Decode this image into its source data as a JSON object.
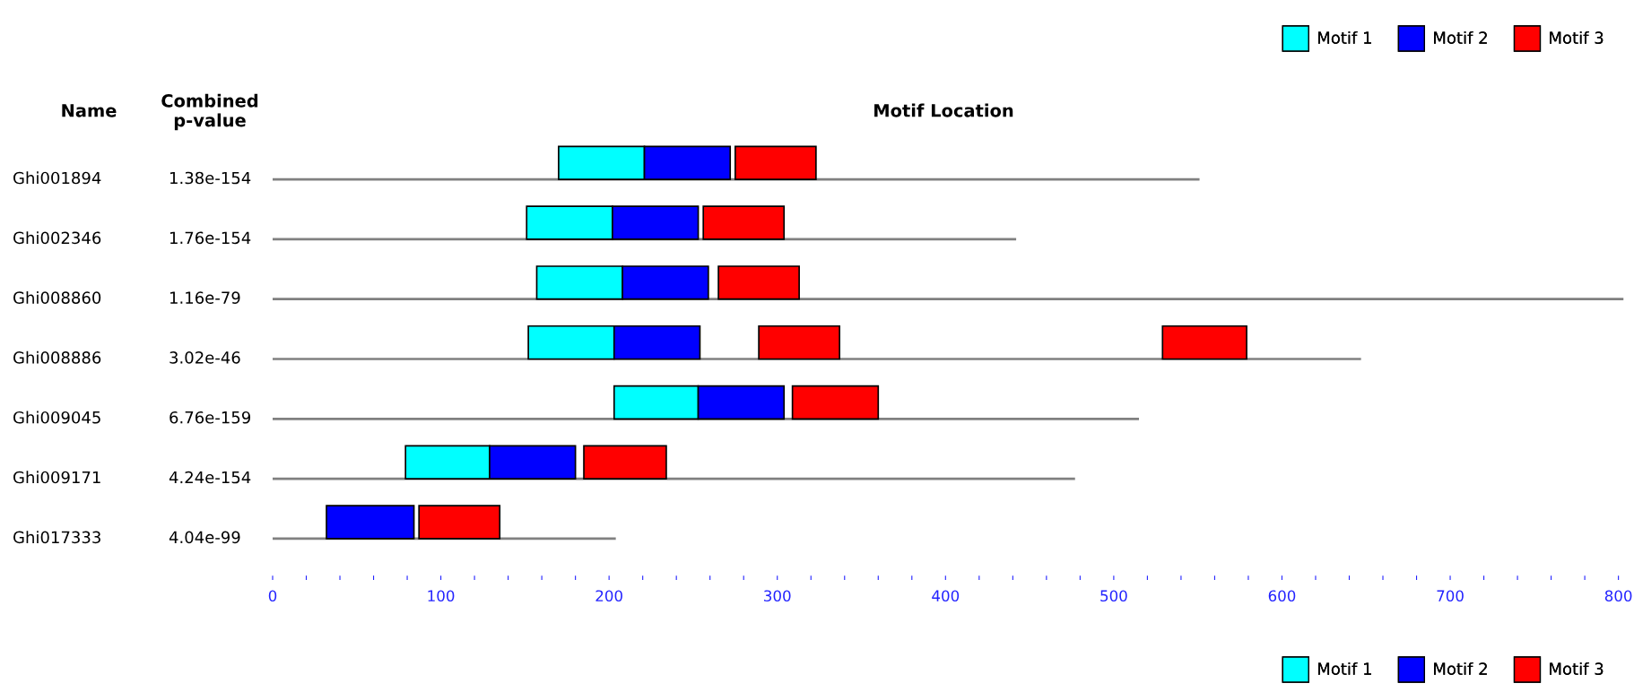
{
  "chart_data": {
    "type": "bar",
    "orientation": "horizontal",
    "title": "Motif Location",
    "annotations": [
      "Name",
      "Combined\np-value"
    ],
    "categories": [
      "Ghi001894",
      "Ghi002346",
      "Ghi008860",
      "Ghi008886",
      "Ghi009045",
      "Ghi009171",
      "Ghi017333"
    ],
    "y2_categories": [
      "1.38e-154",
      "1.76e-154",
      "1.16e-79",
      "3.02e-46",
      "6.76e-159",
      "4.24e-154",
      "4.04e-99"
    ],
    "series": [
      {
        "type": "bar",
        "color": "#808080",
        "values": [
          551,
          442,
          803,
          647,
          515,
          477,
          204
        ]
      },
      {
        "name": "Motif 1",
        "color": "#00ffff",
        "base": [
          170,
          151,
          157,
          152,
          203,
          79,
          null
        ],
        "values": [
          51,
          51,
          51,
          51,
          50,
          50,
          null
        ]
      },
      {
        "name": "Motif 2",
        "color": "#0000ff",
        "base": [
          221,
          202,
          208,
          203,
          253,
          129,
          32
        ],
        "values": [
          51,
          51,
          51,
          51,
          51,
          51,
          52
        ]
      },
      {
        "name": "Motif 3",
        "color": "#ff0000",
        "base": [
          275,
          256,
          265,
          289,
          309,
          185,
          87
        ],
        "values": [
          48,
          48,
          48,
          48,
          51,
          49,
          48
        ]
      },
      {
        "color": "#ff0000",
        "base": [
          null,
          null,
          null,
          529,
          null,
          null,
          null
        ],
        "values": [
          null,
          null,
          null,
          50,
          null,
          null,
          null
        ]
      }
    ],
    "xlim": [
      0,
      805
    ],
    "xticks": [
      0,
      {
        "value": 20,
        "label": null
      },
      {
        "value": 40,
        "label": null
      },
      {
        "value": 60,
        "label": null
      },
      {
        "value": 80,
        "label": null
      },
      100,
      {
        "value": 120,
        "label": null
      },
      {
        "value": 140,
        "label": null
      },
      {
        "value": 160,
        "label": null
      },
      {
        "value": 180,
        "label": null
      },
      200,
      {
        "value": 220,
        "label": null
      },
      {
        "value": 240,
        "label": null
      },
      {
        "value": 260,
        "label": null
      },
      {
        "value": 280,
        "label": null
      },
      300,
      {
        "value": 320,
        "label": null
      },
      {
        "value": 340,
        "label": null
      },
      {
        "value": 360,
        "label": null
      },
      {
        "value": 380,
        "label": null
      },
      400,
      {
        "value": 420,
        "label": null
      },
      {
        "value": 440,
        "label": null
      },
      {
        "value": 460,
        "label": null
      },
      {
        "value": 480,
        "label": null
      },
      500,
      {
        "value": 520,
        "label": null
      },
      {
        "value": 540,
        "label": null
      },
      {
        "value": 560,
        "label": null
      },
      {
        "value": 580,
        "label": null
      },
      600,
      {
        "value": 620,
        "label": null
      },
      {
        "value": 640,
        "label": null
      },
      {
        "value": 660,
        "label": null
      },
      {
        "value": 680,
        "label": null
      },
      700,
      {
        "value": 720,
        "label": null
      },
      {
        "value": 740,
        "label": null
      },
      {
        "value": 760,
        "label": null
      },
      {
        "value": 780,
        "label": null
      },
      800
    ],
    "grid": false,
    "legend": [
      "top right",
      "bottom right"
    ]
  }
}
